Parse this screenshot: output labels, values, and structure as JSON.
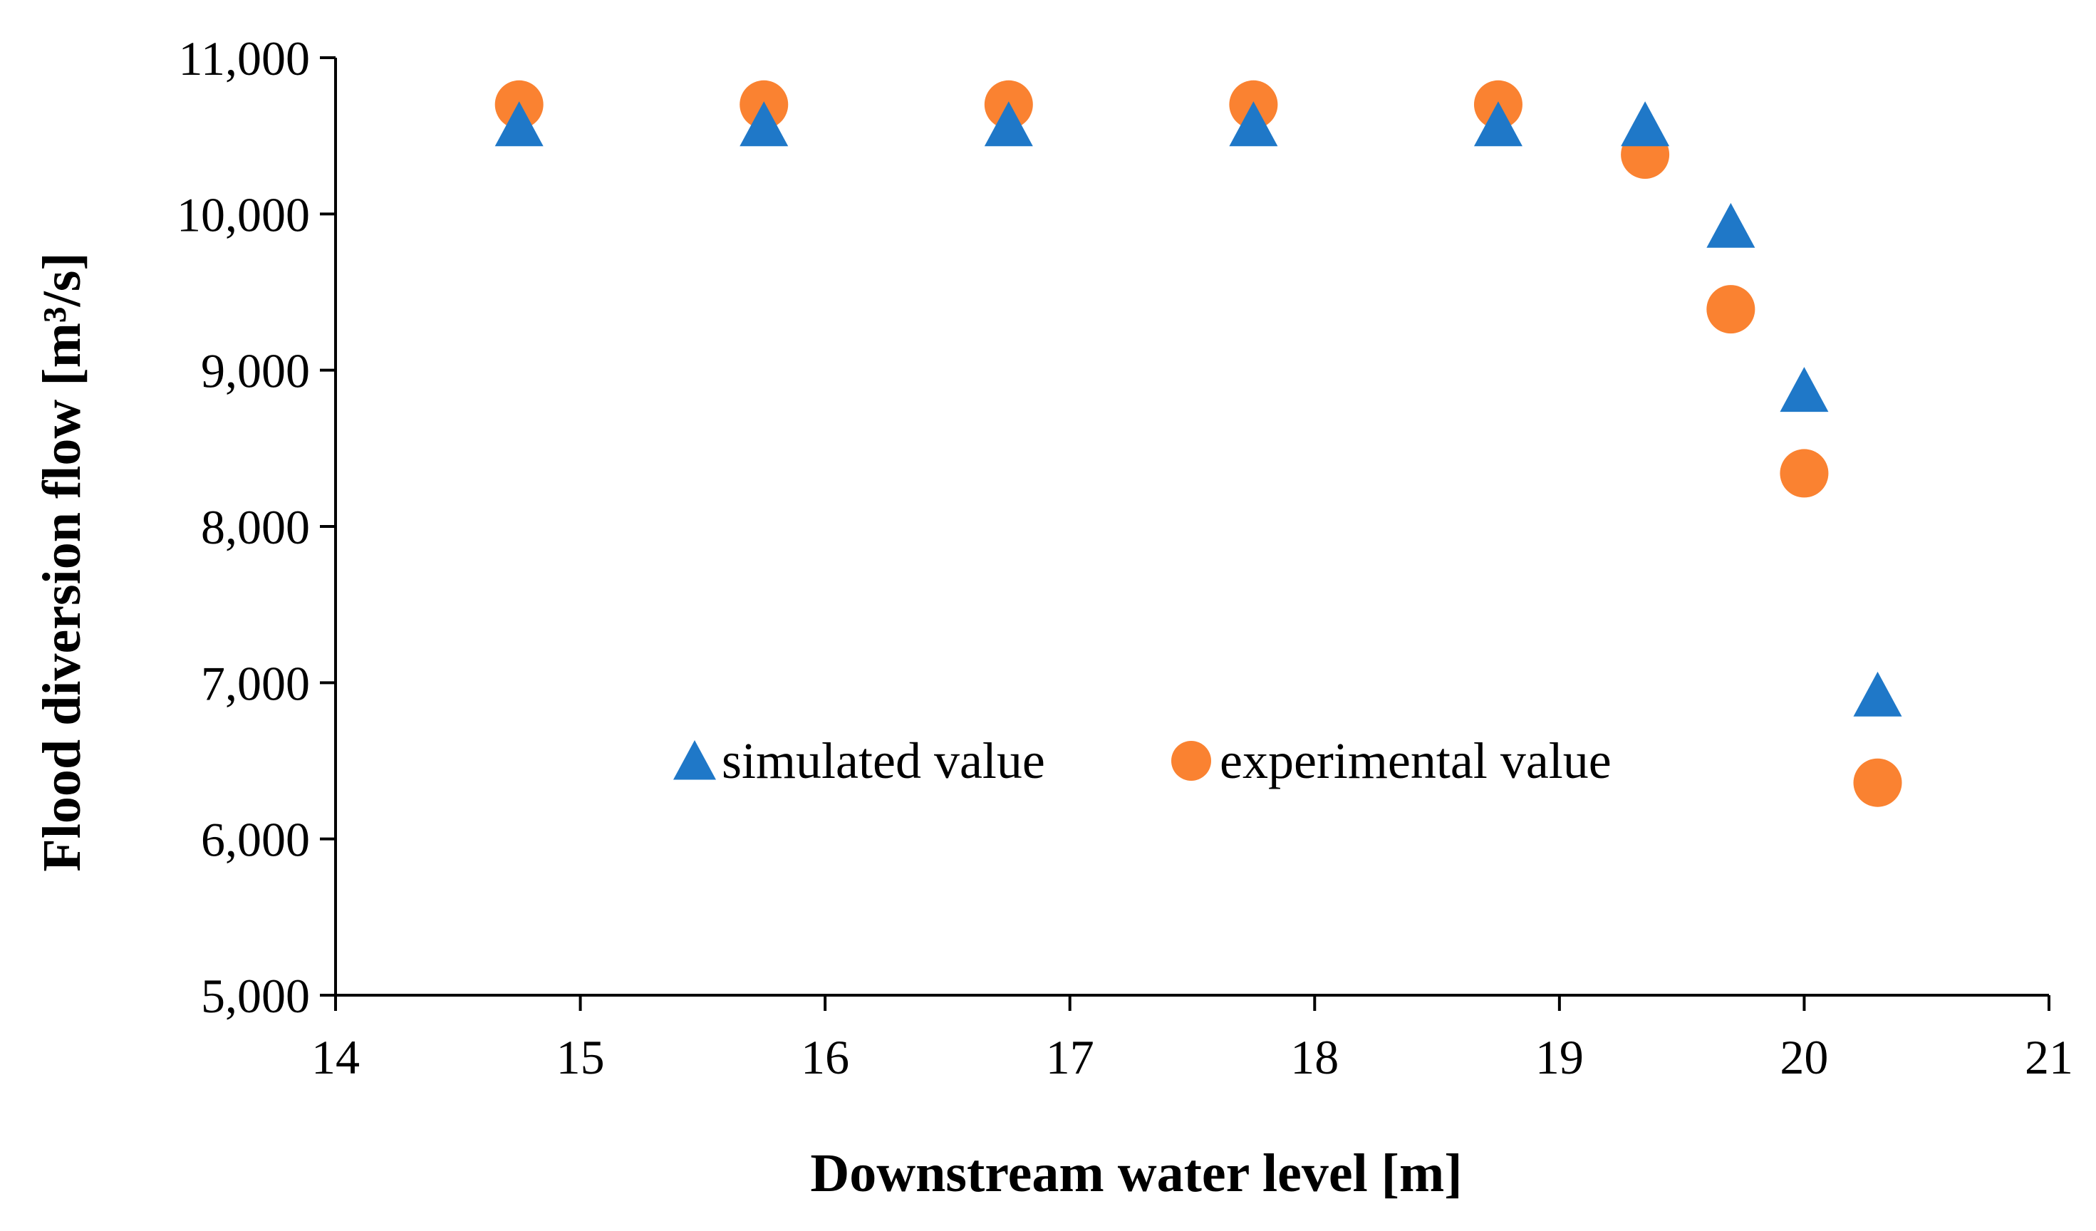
{
  "chart_data": {
    "type": "scatter",
    "title": "",
    "xlabel": "Downstream water level [m]",
    "ylabel": "Flood diversion flow [m³/s]",
    "xlim": [
      14,
      21
    ],
    "ylim": [
      5000,
      11000
    ],
    "x_ticks": [
      "14",
      "15",
      "16",
      "17",
      "18",
      "19",
      "20",
      "21"
    ],
    "y_ticks": [
      "5,000",
      "6,000",
      "7,000",
      "8,000",
      "9,000",
      "10,000",
      "11,000"
    ],
    "x_tick_values": [
      14,
      15,
      16,
      17,
      18,
      19,
      20,
      21
    ],
    "y_tick_values": [
      5000,
      6000,
      7000,
      8000,
      9000,
      10000,
      11000
    ],
    "grid": false,
    "legend_position": "center",
    "series": [
      {
        "name": "simulated value",
        "marker": "triangle",
        "color": "#1f78c8",
        "x": [
          14.75,
          15.75,
          16.75,
          17.75,
          18.75,
          19.35,
          19.7,
          20.0,
          20.3
        ],
        "y": [
          10550,
          10550,
          10550,
          10550,
          10550,
          10550,
          9900,
          8850,
          6900
        ]
      },
      {
        "name": "experimental value",
        "marker": "circle",
        "color": "#fa8231",
        "x": [
          14.75,
          15.75,
          16.75,
          17.75,
          18.75,
          19.35,
          19.7,
          20.0,
          20.3
        ],
        "y": [
          10700,
          10700,
          10700,
          10700,
          10700,
          10380,
          9390,
          8340,
          6360
        ]
      }
    ]
  }
}
